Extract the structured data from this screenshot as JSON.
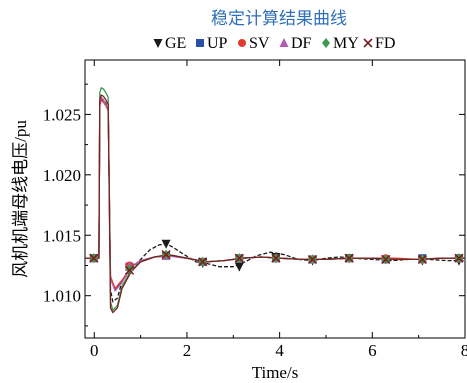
{
  "chart_data": {
    "type": "line",
    "title": "稳定计算结果曲线",
    "xlabel": "Time/s",
    "ylabel": "风机机端母线电压/pu",
    "xlim": [
      -0.2,
      8.0
    ],
    "ylim": [
      1.0065,
      1.0295
    ],
    "xticks": [
      0,
      2,
      4,
      6,
      8
    ],
    "xtick_labels": [
      "0",
      "2",
      "4",
      "6",
      "8"
    ],
    "yticks": [
      1.01,
      1.015,
      1.02,
      1.025
    ],
    "ytick_labels": [
      "1.010",
      "1.015",
      "1.020",
      "1.025"
    ],
    "grid": false,
    "legend_position": "top",
    "series": [
      {
        "name": "GE",
        "marker": "triangle-down",
        "color": "#1a1a1a",
        "dash": "4,2",
        "x": [
          -0.2,
          0.0,
          0.05,
          0.1,
          0.12,
          0.15,
          0.2,
          0.25,
          0.3,
          0.35,
          0.4,
          0.5,
          0.6,
          0.8,
          1.0,
          1.2,
          1.4,
          1.55,
          1.7,
          1.9,
          2.2,
          2.4,
          2.7,
          3.0,
          3.2,
          3.5,
          3.8,
          4.1,
          4.4,
          4.7,
          5.0,
          5.3,
          5.6,
          6.0,
          6.4,
          6.8,
          7.2,
          7.6,
          8.0
        ],
        "y": [
          1.0131,
          1.0131,
          1.0131,
          1.0131,
          1.026,
          1.0264,
          1.0262,
          1.0259,
          1.0256,
          1.0105,
          1.0095,
          1.0098,
          1.0112,
          1.0122,
          1.013,
          1.0138,
          1.0142,
          1.0143,
          1.014,
          1.0135,
          1.0128,
          1.0127,
          1.0124,
          1.0124,
          1.0127,
          1.0133,
          1.0136,
          1.0134,
          1.013,
          1.0129,
          1.0131,
          1.0132,
          1.0131,
          1.013,
          1.0129,
          1.013,
          1.013,
          1.0129,
          1.0129
        ],
        "marker_x": [
          -0.01,
          0.76,
          1.55,
          2.34,
          3.13,
          3.92,
          4.71,
          5.5,
          6.29,
          7.08,
          7.87
        ],
        "marker_y": [
          1.0131,
          1.0123,
          1.0143,
          1.0127,
          1.0124,
          1.0132,
          1.0129,
          1.0131,
          1.013,
          1.0129,
          1.0129
        ]
      },
      {
        "name": "UP",
        "marker": "square",
        "color": "#2a4fa5",
        "dash": "",
        "x": [
          -0.2,
          0.0,
          0.05,
          0.1,
          0.12,
          0.15,
          0.2,
          0.25,
          0.3,
          0.35,
          0.45,
          0.6,
          0.8,
          1.0,
          1.3,
          1.6,
          2.0,
          2.4,
          2.8,
          3.2,
          3.6,
          4.0,
          4.5,
          5.0,
          5.5,
          6.0,
          6.5,
          7.0,
          7.5,
          8.0
        ],
        "y": [
          1.0131,
          1.0131,
          1.0131,
          1.0131,
          1.0258,
          1.0263,
          1.0261,
          1.0258,
          1.0254,
          1.0115,
          1.0105,
          1.0112,
          1.0124,
          1.0129,
          1.0132,
          1.0133,
          1.0131,
          1.0128,
          1.0129,
          1.0131,
          1.0132,
          1.0131,
          1.013,
          1.013,
          1.0131,
          1.0131,
          1.013,
          1.013,
          1.0131,
          1.0131
        ],
        "marker_x": [
          -0.01,
          0.76,
          1.55,
          2.34,
          3.13,
          3.92,
          4.71,
          5.5,
          6.29,
          7.08,
          7.87
        ],
        "marker_y": [
          1.0131,
          1.0124,
          1.0133,
          1.0128,
          1.0131,
          1.0131,
          1.013,
          1.0131,
          1.013,
          1.0131,
          1.0131
        ]
      },
      {
        "name": "SV",
        "marker": "circle",
        "color": "#e23b2e",
        "dash": "",
        "x": [
          -0.2,
          0.0,
          0.05,
          0.1,
          0.12,
          0.15,
          0.2,
          0.25,
          0.3,
          0.35,
          0.45,
          0.6,
          0.8,
          1.0,
          1.3,
          1.6,
          2.0,
          2.4,
          2.8,
          3.2,
          3.6,
          4.0,
          4.5,
          5.0,
          5.5,
          6.0,
          6.5,
          7.0,
          7.5,
          8.0
        ],
        "y": [
          1.0131,
          1.0131,
          1.0131,
          1.0131,
          1.0257,
          1.0262,
          1.026,
          1.0257,
          1.0253,
          1.0116,
          1.0106,
          1.0113,
          1.0124,
          1.0129,
          1.0132,
          1.0133,
          1.0131,
          1.0128,
          1.0129,
          1.0131,
          1.0132,
          1.0131,
          1.013,
          1.013,
          1.0131,
          1.0131,
          1.0131,
          1.013,
          1.0131,
          1.0131
        ],
        "marker_x": [
          -0.01,
          0.76,
          1.55,
          2.34,
          3.13,
          3.92,
          4.71,
          5.5,
          6.29,
          7.08,
          7.87
        ],
        "marker_y": [
          1.0131,
          1.0125,
          1.0133,
          1.0128,
          1.0131,
          1.0131,
          1.013,
          1.0131,
          1.0131,
          1.013,
          1.0131
        ]
      },
      {
        "name": "DF",
        "marker": "triangle-up",
        "color": "#b45ab4",
        "dash": "",
        "x": [
          -0.2,
          0.0,
          0.05,
          0.1,
          0.12,
          0.15,
          0.2,
          0.25,
          0.3,
          0.35,
          0.45,
          0.6,
          0.8,
          1.0,
          1.3,
          1.6,
          2.0,
          2.4,
          2.8,
          3.2,
          3.6,
          4.0,
          4.5,
          5.0,
          5.5,
          6.0,
          6.5,
          7.0,
          7.5,
          8.0
        ],
        "y": [
          1.0131,
          1.0131,
          1.0131,
          1.0131,
          1.0259,
          1.0264,
          1.0262,
          1.0258,
          1.0254,
          1.0114,
          1.0104,
          1.0111,
          1.0124,
          1.0129,
          1.0132,
          1.0133,
          1.0131,
          1.0128,
          1.0129,
          1.0131,
          1.0132,
          1.0131,
          1.013,
          1.013,
          1.0131,
          1.0131,
          1.013,
          1.013,
          1.0131,
          1.0131
        ],
        "marker_x": [
          -0.01,
          0.76,
          1.55,
          2.34,
          3.13,
          3.92,
          4.71,
          5.5,
          6.29,
          7.08,
          7.87
        ],
        "marker_y": [
          1.0131,
          1.0124,
          1.0133,
          1.0128,
          1.0131,
          1.0131,
          1.013,
          1.0131,
          1.013,
          1.013,
          1.0131
        ]
      },
      {
        "name": "MY",
        "marker": "diamond",
        "color": "#3c9a4a",
        "dash": "",
        "x": [
          -0.2,
          0.0,
          0.05,
          0.1,
          0.12,
          0.15,
          0.2,
          0.25,
          0.3,
          0.35,
          0.4,
          0.5,
          0.6,
          0.8,
          1.0,
          1.3,
          1.6,
          2.0,
          2.4,
          2.8,
          3.2,
          3.6,
          4.0,
          4.5,
          5.0,
          5.5,
          6.0,
          6.5,
          7.0,
          7.5,
          8.0
        ],
        "y": [
          1.0131,
          1.0131,
          1.0131,
          1.0131,
          1.0268,
          1.0272,
          1.0271,
          1.0268,
          1.0264,
          1.0095,
          1.0088,
          1.0092,
          1.0108,
          1.0121,
          1.0128,
          1.0132,
          1.0134,
          1.0131,
          1.0128,
          1.0129,
          1.0131,
          1.0132,
          1.0131,
          1.013,
          1.013,
          1.0131,
          1.0131,
          1.013,
          1.013,
          1.0131,
          1.0131
        ],
        "marker_x": [
          -0.01,
          0.76,
          1.55,
          2.34,
          3.13,
          3.92,
          4.71,
          5.5,
          6.29,
          7.08,
          7.87
        ],
        "marker_y": [
          1.0131,
          1.0122,
          1.0134,
          1.0128,
          1.0131,
          1.0131,
          1.013,
          1.0131,
          1.013,
          1.013,
          1.0131
        ]
      },
      {
        "name": "FD",
        "marker": "cross",
        "color": "#7a2020",
        "dash": "",
        "x": [
          -0.2,
          0.0,
          0.05,
          0.1,
          0.12,
          0.15,
          0.2,
          0.25,
          0.3,
          0.35,
          0.4,
          0.5,
          0.6,
          0.8,
          1.0,
          1.3,
          1.6,
          2.0,
          2.4,
          2.8,
          3.2,
          3.6,
          4.0,
          4.5,
          5.0,
          5.5,
          6.0,
          6.5,
          7.0,
          7.5,
          8.0
        ],
        "y": [
          1.0131,
          1.0131,
          1.0131,
          1.0131,
          1.0262,
          1.0266,
          1.0265,
          1.0262,
          1.0258,
          1.009,
          1.0086,
          1.009,
          1.0106,
          1.012,
          1.0128,
          1.0132,
          1.0134,
          1.0131,
          1.0128,
          1.0129,
          1.0131,
          1.0132,
          1.0131,
          1.013,
          1.013,
          1.0131,
          1.0131,
          1.013,
          1.013,
          1.0131,
          1.0131
        ],
        "marker_x": [
          -0.01,
          0.76,
          1.55,
          2.34,
          3.13,
          3.92,
          4.71,
          5.5,
          6.29,
          7.08,
          7.87
        ],
        "marker_y": [
          1.0131,
          1.0121,
          1.0134,
          1.0128,
          1.0131,
          1.0131,
          1.013,
          1.0131,
          1.013,
          1.013,
          1.0131
        ]
      }
    ]
  }
}
